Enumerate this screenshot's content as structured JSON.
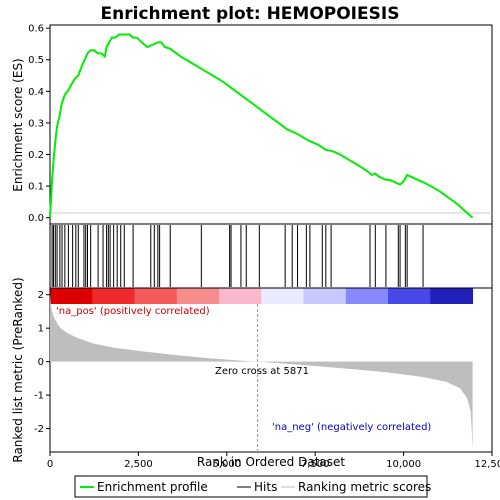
{
  "chart_data": {
    "type": "line",
    "title": "Enrichment plot: HEMOPOIESIS",
    "top_panel": {
      "ylabel": "Enrichment score (ES)",
      "ylim": [
        -0.02,
        0.61
      ],
      "yticks": [
        0.0,
        0.1,
        0.2,
        0.3,
        0.4,
        0.5,
        0.6
      ],
      "ytick_labels": [
        "0.0",
        "0.1",
        "0.2",
        "0.3",
        "0.4",
        "0.5",
        "0.6"
      ],
      "series": [
        {
          "name": "Enrichment profile",
          "color": "#00ee00",
          "x": [
            0,
            60,
            100,
            150,
            200,
            270,
            330,
            420,
            500,
            600,
            700,
            800,
            900,
            980,
            1060,
            1150,
            1250,
            1350,
            1450,
            1550,
            1600,
            1650,
            1700,
            1750,
            1850,
            1950,
            2050,
            2150,
            2250,
            2350,
            2450,
            2550,
            2650,
            2750,
            2850,
            2950,
            3050,
            3150,
            3250,
            3400,
            3700,
            4000,
            4300,
            4600,
            4900,
            5200,
            5500,
            5800,
            6100,
            6400,
            6700,
            7000,
            7300,
            7600,
            7800,
            8000,
            8200,
            8500,
            8800,
            9000,
            9100,
            9200,
            9300,
            9400,
            9500,
            9600,
            9700,
            9800,
            9900,
            10000,
            10050,
            10100,
            10200,
            10300,
            10400,
            10500,
            10600,
            11000,
            11500,
            11950
          ],
          "y": [
            0.0,
            0.12,
            0.18,
            0.24,
            0.29,
            0.32,
            0.36,
            0.39,
            0.4,
            0.42,
            0.44,
            0.45,
            0.48,
            0.5,
            0.52,
            0.53,
            0.53,
            0.52,
            0.52,
            0.51,
            0.54,
            0.55,
            0.56,
            0.57,
            0.57,
            0.58,
            0.58,
            0.58,
            0.58,
            0.57,
            0.57,
            0.56,
            0.55,
            0.54,
            0.545,
            0.55,
            0.555,
            0.555,
            0.54,
            0.535,
            0.51,
            0.49,
            0.47,
            0.45,
            0.43,
            0.405,
            0.38,
            0.355,
            0.33,
            0.305,
            0.28,
            0.265,
            0.245,
            0.23,
            0.215,
            0.21,
            0.2,
            0.18,
            0.16,
            0.145,
            0.135,
            0.14,
            0.13,
            0.125,
            0.12,
            0.12,
            0.115,
            0.11,
            0.105,
            0.115,
            0.125,
            0.135,
            0.13,
            0.125,
            0.12,
            0.115,
            0.11,
            0.085,
            0.045,
            0.0
          ]
        }
      ]
    },
    "hits_panel": {
      "hit_positions": [
        60,
        100,
        150,
        200,
        280,
        340,
        420,
        520,
        640,
        730,
        800,
        960,
        1010,
        1060,
        1150,
        1360,
        1500,
        1600,
        1650,
        1700,
        1800,
        1900,
        2000,
        2100,
        2350,
        2850,
        2950,
        3050,
        3100,
        3400,
        4280,
        5080,
        5120,
        5400,
        5550,
        5920,
        6650,
        6850,
        7000,
        7250,
        7350,
        7700,
        7800,
        7950,
        9050,
        9200,
        9500,
        9850,
        9900,
        10050,
        10100,
        10550
      ],
      "heat_colors": [
        "#dd0000",
        "#ee2a2a",
        "#f35a5a",
        "#f78c8c",
        "#fbb8cc",
        "#e9e9ff",
        "#c8c8ff",
        "#8888ff",
        "#4848e8",
        "#2020bb"
      ]
    },
    "bottom_panel": {
      "ylabel": "Ranked list metric (PreRanked)",
      "ylim": [
        -2.7,
        2.2
      ],
      "yticks": [
        2,
        1,
        0,
        -1,
        -2
      ],
      "ytick_labels": [
        "2",
        "1",
        "0",
        "-1",
        "-2"
      ],
      "x": [
        0,
        20,
        60,
        100,
        200,
        300,
        500,
        800,
        1200,
        1800,
        2500,
        3500,
        4500,
        5400,
        5871,
        6500,
        7500,
        8500,
        9500,
        10500,
        11200,
        11600,
        11800,
        11900,
        11950
      ],
      "y": [
        2.05,
        1.7,
        1.5,
        1.35,
        1.15,
        1.0,
        0.85,
        0.7,
        0.55,
        0.42,
        0.32,
        0.2,
        0.1,
        0.03,
        0.0,
        -0.05,
        -0.13,
        -0.22,
        -0.32,
        -0.45,
        -0.6,
        -0.8,
        -1.1,
        -1.5,
        -2.6
      ],
      "zero_cross_label": "Zero cross at 5871",
      "zero_cross_x": 5871,
      "pos_label": "'na_pos' (positively correlated)",
      "neg_label": "'na_neg' (negatively correlated)",
      "fill_color": "#bebebe"
    },
    "xlabel": "Rank in Ordered Dataset",
    "xlim": [
      0,
      12500
    ],
    "xticks": [
      0,
      2500,
      5000,
      7500,
      10000,
      12500
    ],
    "xtick_labels": [
      "0",
      "2,500",
      "5,000",
      "7,500",
      "10,000",
      "12,500"
    ],
    "colors": {
      "pos_label": "#cc0000",
      "neg_label": "#0000cc",
      "profile": "#00ee00"
    }
  },
  "legend": {
    "items": [
      {
        "label": "Enrichment profile",
        "color": "#00ee00"
      },
      {
        "label": "Hits",
        "color": "#000000"
      },
      {
        "label": "Ranking metric scores",
        "color": "#bebebe"
      }
    ]
  }
}
